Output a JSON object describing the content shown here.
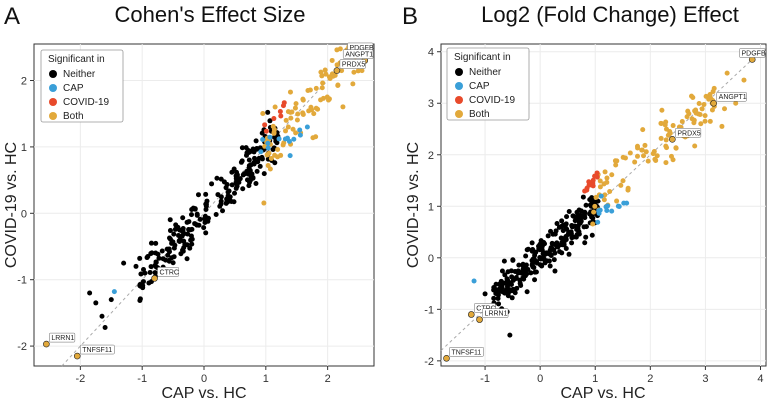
{
  "figure": {
    "letter_a": "A",
    "letter_b": "B"
  },
  "legend": {
    "title": "Significant in",
    "items": [
      {
        "name": "Neither",
        "color": "#000000"
      },
      {
        "name": "CAP",
        "color": "#3a9fd8"
      },
      {
        "name": "COVID-19",
        "color": "#e84a2b"
      },
      {
        "name": "Both",
        "color": "#e2a93b"
      }
    ]
  },
  "chart_data": [
    {
      "type": "scatter",
      "title": "Cohen's Effect Size",
      "xlabel": "CAP vs. HC",
      "ylabel": "COVID-19 vs. HC",
      "xlim": [
        -2.75,
        2.75
      ],
      "ylim": [
        -2.3,
        2.55
      ],
      "xticks": [
        -2,
        -1,
        0,
        1,
        2
      ],
      "yticks": [
        -2,
        -1,
        0,
        1,
        2
      ],
      "diagonal": true,
      "labels": [
        {
          "text": "PDGFB",
          "x": 2.35,
          "y": 2.4
        },
        {
          "text": "ANGPT1",
          "x": 2.6,
          "y": 2.3
        },
        {
          "text": "PRDX5",
          "x": 2.15,
          "y": 2.15
        },
        {
          "text": "CTRC",
          "x": -0.8,
          "y": -0.98
        },
        {
          "text": "LRRN1",
          "x": -2.55,
          "y": -1.97
        },
        {
          "text": "TNFSF11",
          "x": -2.05,
          "y": -2.15
        }
      ],
      "outliers": [
        {
          "x": -1.85,
          "y": -1.2,
          "group": "Neither"
        },
        {
          "x": -1.75,
          "y": -1.35,
          "group": "Neither"
        },
        {
          "x": -1.65,
          "y": -1.55,
          "group": "Neither"
        },
        {
          "x": -1.6,
          "y": -1.72,
          "group": "Neither"
        },
        {
          "x": -1.5,
          "y": -1.3,
          "group": "Neither"
        },
        {
          "x": -1.45,
          "y": -1.18,
          "group": "CAP"
        },
        {
          "x": -1.3,
          "y": -0.75,
          "group": "Neither"
        },
        {
          "x": -1.1,
          "y": -0.8,
          "group": "Neither"
        },
        {
          "x": -0.85,
          "y": -0.45,
          "group": "Neither"
        }
      ],
      "clusters": [
        {
          "group": "Neither",
          "n": 230,
          "x0": -1.05,
          "x1": 1.2,
          "slope": 1.0,
          "spread": 0.17
        },
        {
          "group": "Both",
          "n": 95,
          "x0": 0.95,
          "x1": 2.6,
          "slope": 0.95,
          "spread": 0.22
        },
        {
          "group": "CAP",
          "n": 14,
          "x0": 0.85,
          "x1": 1.75,
          "slope": 0.55,
          "spread": 0.12,
          "offset": 0.45
        },
        {
          "group": "COVID-19",
          "n": 7,
          "x0": 0.6,
          "x1": 1.35,
          "slope": 1.1,
          "spread": 0.06,
          "offset": 0.15
        }
      ]
    },
    {
      "type": "scatter",
      "title": "Log2 (Fold Change) Effect",
      "xlabel": "CAP vs. HC",
      "ylabel": "COVID-19 vs. HC",
      "xlim": [
        -1.8,
        4.1
      ],
      "ylim": [
        -2.1,
        4.15
      ],
      "xticks": [
        -1,
        0,
        1,
        2,
        3,
        4
      ],
      "yticks": [
        -2,
        -1,
        0,
        1,
        2,
        3,
        4
      ],
      "diagonal": true,
      "labels": [
        {
          "text": "PDGFB",
          "x": 3.85,
          "y": 3.85
        },
        {
          "text": "ANGPT1",
          "x": 3.15,
          "y": 3.0
        },
        {
          "text": "PRDX5",
          "x": 2.4,
          "y": 2.3
        },
        {
          "text": "CTRC",
          "x": -1.25,
          "y": -1.1
        },
        {
          "text": "LRRN1",
          "x": -1.1,
          "y": -1.2
        },
        {
          "text": "TNFSF11",
          "x": -1.7,
          "y": -1.95
        }
      ],
      "outliers": [
        {
          "x": -1.2,
          "y": -0.45,
          "group": "CAP"
        },
        {
          "x": -1.0,
          "y": -0.7,
          "group": "Neither"
        },
        {
          "x": -0.85,
          "y": -0.95,
          "group": "Neither"
        },
        {
          "x": -0.55,
          "y": -1.5,
          "group": "Neither"
        },
        {
          "x": -0.6,
          "y": -1.05,
          "group": "Neither"
        },
        {
          "x": 3.7,
          "y": 3.45,
          "group": "Both"
        },
        {
          "x": 3.55,
          "y": 3.0,
          "group": "Both"
        },
        {
          "x": 3.3,
          "y": 2.55,
          "group": "Both"
        }
      ],
      "clusters": [
        {
          "group": "Neither",
          "n": 260,
          "x0": -0.85,
          "x1": 1.05,
          "slope": 0.95,
          "spread": 0.18
        },
        {
          "group": "Both",
          "n": 110,
          "x0": 0.95,
          "x1": 3.4,
          "slope": 0.9,
          "spread": 0.25,
          "offset": 0.25
        },
        {
          "group": "CAP",
          "n": 13,
          "x0": 1.0,
          "x1": 1.6,
          "slope": 0.3,
          "spread": 0.1,
          "offset": 0.55
        },
        {
          "group": "COVID-19",
          "n": 12,
          "x0": 0.8,
          "x1": 1.05,
          "slope": 1.4,
          "spread": 0.06,
          "offset": 0.15
        }
      ]
    }
  ]
}
